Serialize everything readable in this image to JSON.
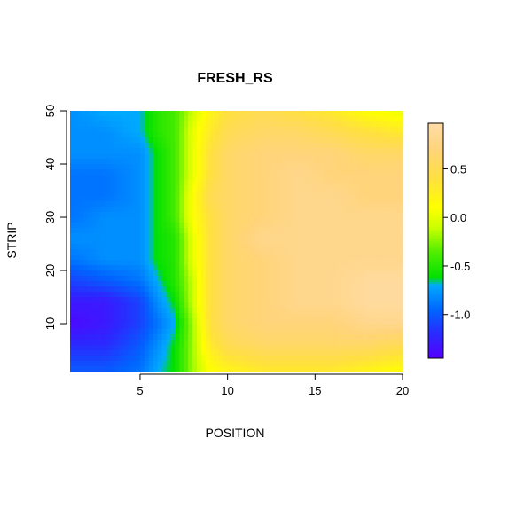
{
  "chart_data": {
    "type": "heatmap",
    "title": "FRESH_RS",
    "xlabel": "POSITION",
    "ylabel": "STRIP",
    "xlim": [
      1,
      20
    ],
    "ylim": [
      1,
      50
    ],
    "x_ticks": [
      5,
      10,
      15,
      20
    ],
    "y_ticks": [
      10,
      20,
      30,
      40,
      50
    ],
    "x_tick_labels": [
      "5",
      "10",
      "15",
      "20"
    ],
    "y_tick_labels": [
      "10",
      "20",
      "30",
      "40",
      "50"
    ],
    "colorbar": {
      "range": [
        -1.45,
        0.97
      ],
      "ticks": [
        -1.0,
        -0.5,
        0.0,
        0.5
      ],
      "tick_labels": [
        "-1.0",
        "-0.5",
        "0.0",
        "0.5"
      ],
      "colors": [
        {
          "value": -1.45,
          "color": "#5500ff"
        },
        {
          "value": -1.2,
          "color": "#2a2aff"
        },
        {
          "value": -0.95,
          "color": "#0066ff"
        },
        {
          "value": -0.7,
          "color": "#00aaff"
        },
        {
          "value": -0.62,
          "color": "#00e000"
        },
        {
          "value": -0.35,
          "color": "#55ee00"
        },
        {
          "value": -0.1,
          "color": "#ccff00"
        },
        {
          "value": 0.1,
          "color": "#ffff00"
        },
        {
          "value": 0.4,
          "color": "#ffe040"
        },
        {
          "value": 0.7,
          "color": "#ffd47a"
        },
        {
          "value": 0.97,
          "color": "#ffdcaa"
        }
      ]
    },
    "x": [
      1,
      3,
      5,
      6,
      7,
      8,
      9,
      10,
      12,
      14,
      16,
      18,
      20
    ],
    "y": [
      1,
      6,
      10,
      14,
      18,
      22,
      26,
      30,
      34,
      38,
      42,
      46,
      50
    ],
    "z": [
      [
        -1.0,
        -1.0,
        -0.9,
        -0.7,
        -0.6,
        -0.2,
        0.1,
        0.2,
        0.3,
        0.3,
        0.3,
        0.2,
        0.1
      ],
      [
        -1.2,
        -1.2,
        -1.0,
        -0.8,
        -0.6,
        -0.2,
        0.3,
        0.5,
        0.6,
        0.6,
        0.6,
        0.6,
        0.5
      ],
      [
        -1.4,
        -1.3,
        -1.1,
        -0.9,
        -0.7,
        -0.2,
        0.4,
        0.6,
        0.7,
        0.7,
        0.7,
        0.8,
        0.8
      ],
      [
        -1.3,
        -1.3,
        -1.1,
        -0.8,
        -0.6,
        -0.1,
        0.4,
        0.6,
        0.7,
        0.8,
        0.8,
        0.9,
        0.9
      ],
      [
        -1.1,
        -1.0,
        -0.9,
        -0.7,
        -0.5,
        -0.1,
        0.4,
        0.6,
        0.7,
        0.8,
        0.8,
        0.9,
        0.9
      ],
      [
        -0.9,
        -0.8,
        -0.8,
        -0.6,
        -0.5,
        0.0,
        0.4,
        0.6,
        0.7,
        0.8,
        0.8,
        0.8,
        0.8
      ],
      [
        -0.8,
        -0.8,
        -0.8,
        -0.6,
        -0.5,
        0.0,
        0.4,
        0.6,
        0.8,
        0.8,
        0.8,
        0.8,
        0.8
      ],
      [
        -0.9,
        -0.8,
        -0.8,
        -0.6,
        -0.4,
        0.1,
        0.4,
        0.6,
        0.7,
        0.8,
        0.8,
        0.8,
        0.8
      ],
      [
        -0.9,
        -0.9,
        -0.8,
        -0.6,
        -0.4,
        0.1,
        0.5,
        0.6,
        0.7,
        0.8,
        0.8,
        0.7,
        0.7
      ],
      [
        -0.9,
        -0.9,
        -0.8,
        -0.6,
        -0.4,
        0.0,
        0.4,
        0.6,
        0.7,
        0.8,
        0.7,
        0.7,
        0.7
      ],
      [
        -0.8,
        -0.8,
        -0.8,
        -0.6,
        -0.4,
        0.0,
        0.4,
        0.6,
        0.7,
        0.7,
        0.7,
        0.6,
        0.6
      ],
      [
        -0.8,
        -0.8,
        -0.7,
        -0.5,
        -0.4,
        0.0,
        0.3,
        0.5,
        0.6,
        0.6,
        0.5,
        0.4,
        0.3
      ],
      [
        -0.8,
        -0.7,
        -0.7,
        -0.5,
        -0.4,
        -0.1,
        0.2,
        0.4,
        0.5,
        0.4,
        0.3,
        0.1,
        0.0
      ]
    ]
  }
}
